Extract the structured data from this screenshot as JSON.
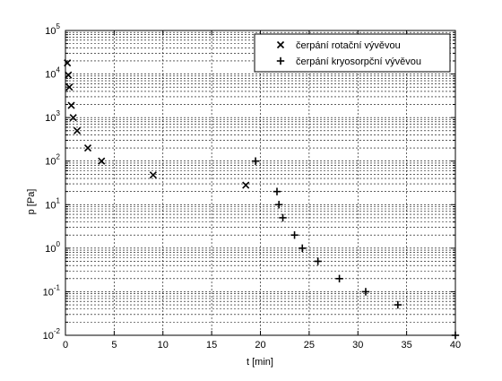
{
  "chart_data": {
    "type": "scatter",
    "title": "",
    "xlabel": "t [min]",
    "ylabel": "p [Pa]",
    "xlim": [
      0,
      40
    ],
    "ylim": [
      0.01,
      100000
    ],
    "yscale": "log",
    "grid": true,
    "legend_position": "top-right",
    "x_ticks": [
      {
        "value": 0,
        "label": "0"
      },
      {
        "value": 5,
        "label": "5"
      },
      {
        "value": 10,
        "label": "10"
      },
      {
        "value": 15,
        "label": "15"
      },
      {
        "value": 20,
        "label": "20"
      },
      {
        "value": 25,
        "label": "25"
      },
      {
        "value": 30,
        "label": "30"
      },
      {
        "value": 35,
        "label": "35"
      },
      {
        "value": 40,
        "label": "40"
      }
    ],
    "y_ticks": [
      {
        "value": 0.01,
        "base": "10",
        "exp": "-2"
      },
      {
        "value": 0.1,
        "base": "10",
        "exp": "-1"
      },
      {
        "value": 1,
        "base": "10",
        "exp": "0"
      },
      {
        "value": 10,
        "base": "10",
        "exp": "1"
      },
      {
        "value": 100,
        "base": "10",
        "exp": "2"
      },
      {
        "value": 1000,
        "base": "10",
        "exp": "3"
      },
      {
        "value": 10000,
        "base": "10",
        "exp": "4"
      },
      {
        "value": 100000,
        "base": "10",
        "exp": "5"
      }
    ],
    "series": [
      {
        "name": "čerpání rotační vývěvou",
        "marker": "x",
        "color": "#000000",
        "points": [
          {
            "x": 0.2,
            "y": 18000
          },
          {
            "x": 0.3,
            "y": 9500
          },
          {
            "x": 0.4,
            "y": 5000
          },
          {
            "x": 0.6,
            "y": 1900
          },
          {
            "x": 0.8,
            "y": 1000
          },
          {
            "x": 1.2,
            "y": 500
          },
          {
            "x": 2.3,
            "y": 200
          },
          {
            "x": 3.7,
            "y": 100
          },
          {
            "x": 9.0,
            "y": 48
          },
          {
            "x": 18.5,
            "y": 28
          }
        ]
      },
      {
        "name": "čerpání kryosorpční vývěvou",
        "marker": "+",
        "color": "#000000",
        "points": [
          {
            "x": 19.5,
            "y": 100
          },
          {
            "x": 21.7,
            "y": 20
          },
          {
            "x": 21.9,
            "y": 10
          },
          {
            "x": 22.3,
            "y": 5
          },
          {
            "x": 23.5,
            "y": 2
          },
          {
            "x": 24.3,
            "y": 1
          },
          {
            "x": 25.9,
            "y": 0.5
          },
          {
            "x": 28.1,
            "y": 0.2
          },
          {
            "x": 30.8,
            "y": 0.1
          },
          {
            "x": 34.1,
            "y": 0.05
          },
          {
            "x": 40.0,
            "y": 0.01
          }
        ]
      }
    ]
  }
}
